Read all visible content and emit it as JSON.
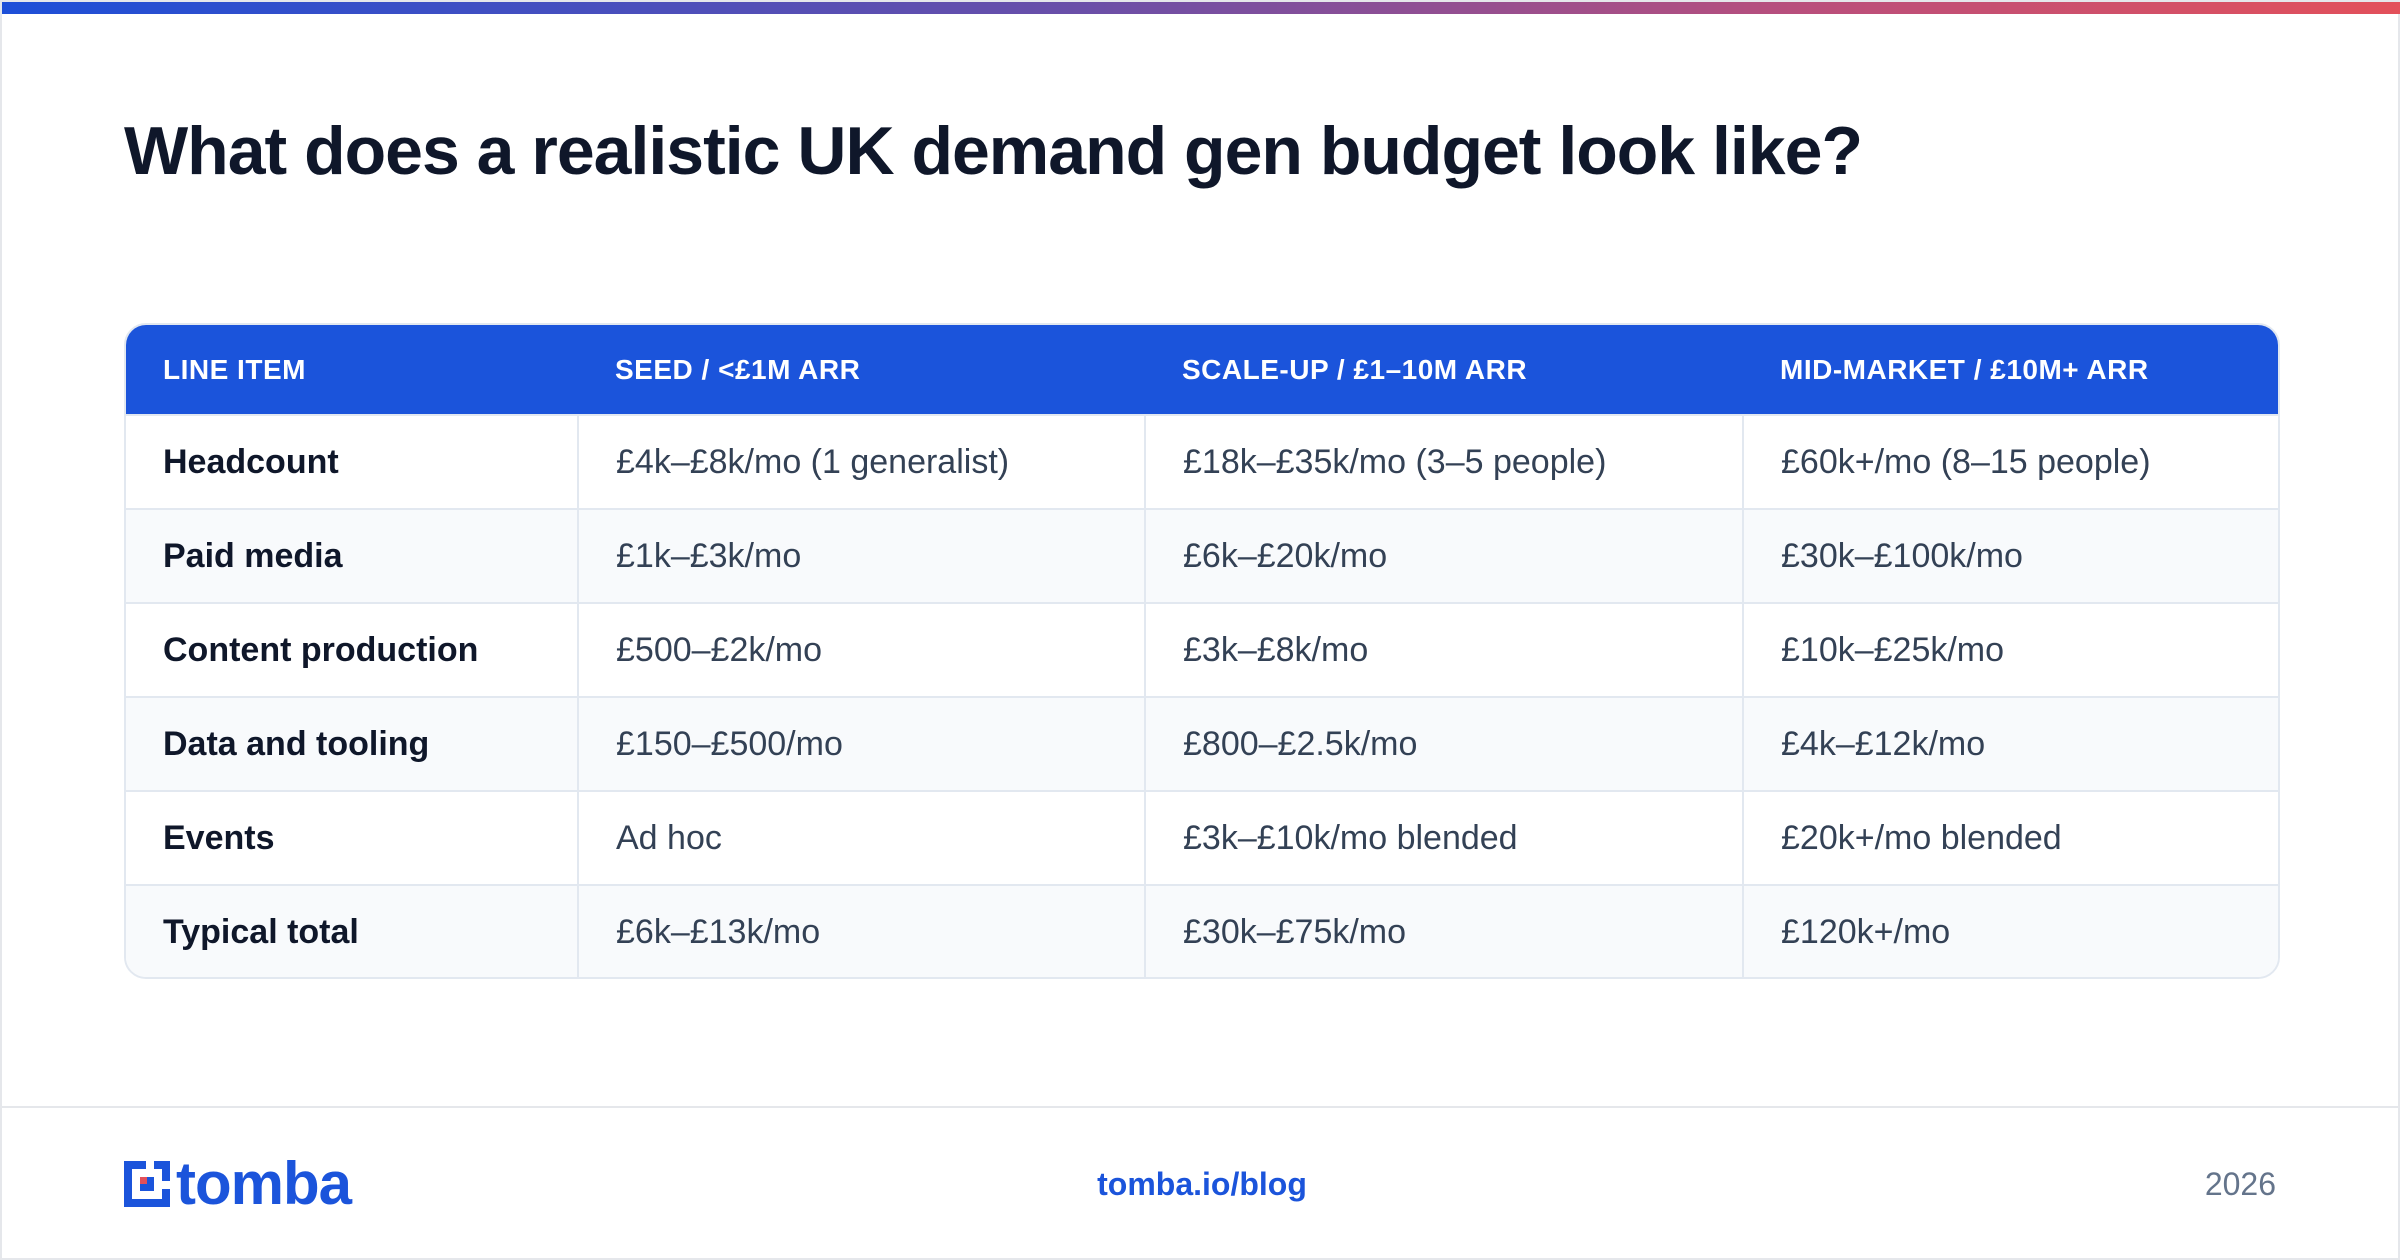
{
  "title": "What does a realistic UK demand gen budget look like?",
  "colors": {
    "accent": "#1b54db",
    "heading": "#0f172a",
    "body_text": "#334155",
    "muted": "#64748b",
    "gradient_start": "#1d4fd8",
    "gradient_end": "#e3505a"
  },
  "table": {
    "headers": [
      "LINE ITEM",
      "SEED / <£1M ARR",
      "SCALE-UP / £1–10M ARR",
      "MID-MARKET / £10M+ ARR"
    ],
    "rows": [
      [
        "Headcount",
        "£4k–£8k/mo (1 generalist)",
        "£18k–£35k/mo (3–5 people)",
        "£60k+/mo (8–15 people)"
      ],
      [
        "Paid media",
        "£1k–£3k/mo",
        "£6k–£20k/mo",
        "£30k–£100k/mo"
      ],
      [
        "Content production",
        "£500–£2k/mo",
        "£3k–£8k/mo",
        "£10k–£25k/mo"
      ],
      [
        "Data and tooling",
        "£150–£500/mo",
        "£800–£2.5k/mo",
        "£4k–£12k/mo"
      ],
      [
        "Events",
        "Ad hoc",
        "£3k–£10k/mo blended",
        "£20k+/mo blended"
      ],
      [
        "Typical total",
        "£6k–£13k/mo",
        "£30k–£75k/mo",
        "£120k+/mo"
      ]
    ]
  },
  "footer": {
    "logo_text": "tomba",
    "logo_icon": "tomba-logo-icon",
    "link": "tomba.io/blog",
    "year": "2026"
  }
}
